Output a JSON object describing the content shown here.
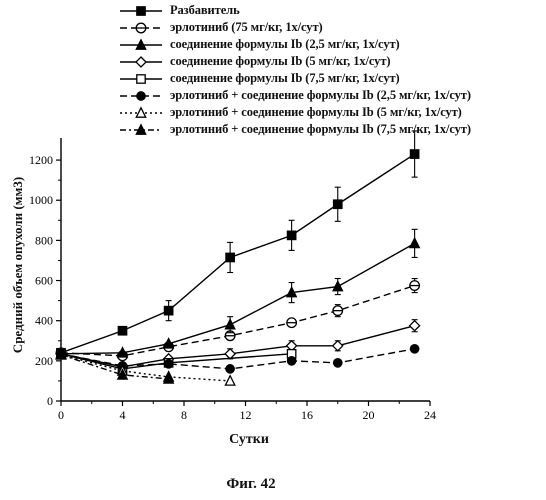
{
  "chart_data": {
    "type": "line",
    "xlabel": "Сутки",
    "ylabel": "Средний объем опухоли (мм3)",
    "caption": "Фиг. 42",
    "xlim": [
      0,
      24
    ],
    "ylim": [
      0,
      1300
    ],
    "xticks": [
      "0",
      "4",
      "8",
      "12",
      "16",
      "20",
      "24"
    ],
    "yticks": [
      "0",
      "200",
      "400",
      "600",
      "800",
      "1000",
      "1200"
    ],
    "grid": false,
    "legend_position": "top",
    "series": [
      {
        "name": "Разбавитель",
        "marker": "square-filled",
        "line": "solid",
        "x": [
          0,
          4,
          7,
          11,
          15,
          18,
          23
        ],
        "y": [
          240,
          350,
          450,
          715,
          825,
          980,
          1230
        ],
        "err": [
          0,
          0,
          50,
          75,
          75,
          85,
          115
        ]
      },
      {
        "name": "эрлотиниб (75 мг/кг, 1х/сут)",
        "marker": "circle-bar-open",
        "line": "dashed",
        "x": [
          0,
          4,
          7,
          11,
          15,
          18,
          23
        ],
        "y": [
          240,
          225,
          270,
          325,
          390,
          450,
          575
        ],
        "err": [
          0,
          0,
          0,
          0,
          0,
          30,
          35
        ]
      },
      {
        "name": "соединение формулы Ib (2,5 мг/кг, 1х/сут)",
        "marker": "triangle-filled",
        "line": "solid",
        "x": [
          0,
          4,
          7,
          11,
          15,
          18,
          23
        ],
        "y": [
          235,
          240,
          285,
          380,
          540,
          570,
          785
        ],
        "err": [
          0,
          0,
          0,
          40,
          50,
          40,
          70
        ]
      },
      {
        "name": "соединение формулы Ib (5 мг/кг, 1х/сут)",
        "marker": "diamond-open",
        "line": "solid",
        "x": [
          0,
          4,
          7,
          11,
          15,
          18,
          23
        ],
        "y": [
          235,
          170,
          210,
          235,
          275,
          275,
          375
        ],
        "err": [
          0,
          0,
          0,
          25,
          25,
          25,
          30
        ]
      },
      {
        "name": "соединение формулы Ib (7,5 мг/кг, 1х/сут)",
        "marker": "square-open",
        "line": "solid",
        "x": [
          0,
          4,
          7,
          15
        ],
        "y": [
          235,
          160,
          190,
          235
        ],
        "err": [
          0,
          0,
          0,
          20
        ]
      },
      {
        "name": "эрлотиниб + соединение формулы Ib (2,5 мг/кг, 1х/сут)",
        "marker": "circle-filled",
        "line": "dashed",
        "x": [
          0,
          4,
          7,
          11,
          15,
          18,
          23
        ],
        "y": [
          235,
          175,
          185,
          160,
          200,
          190,
          260
        ],
        "err": [
          0,
          0,
          0,
          0,
          0,
          0,
          0
        ]
      },
      {
        "name": "эрлотиниб + соединение формулы Ib (5 мг/кг, 1х/сут)",
        "marker": "triangle-open",
        "line": "dotted",
        "x": [
          0,
          4,
          7,
          11
        ],
        "y": [
          230,
          150,
          120,
          100
        ],
        "err": [
          0,
          0,
          0,
          0
        ]
      },
      {
        "name": "эрлотиниб + соединение формулы Ib  (7,5 мг/кг, 1х/сут)",
        "marker": "triangle-filled",
        "line": "dashdot",
        "x": [
          0,
          4,
          7
        ],
        "y": [
          230,
          130,
          110
        ],
        "err": [
          0,
          0,
          0
        ]
      }
    ]
  }
}
